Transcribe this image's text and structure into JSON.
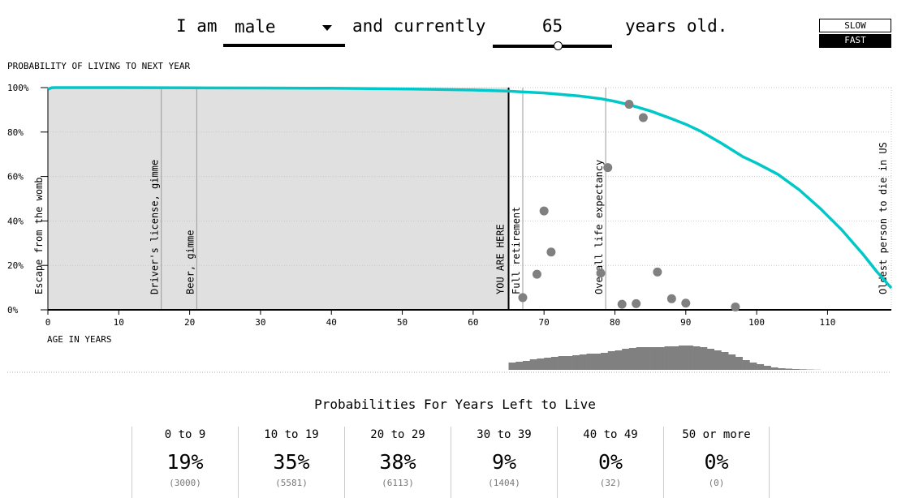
{
  "header": {
    "prefix": "I am",
    "sex_select": {
      "value": "male"
    },
    "middle": "and currently",
    "age_slider": {
      "value": "65"
    },
    "suffix": "years old."
  },
  "speed_toggle": {
    "slow_label": "SLOW",
    "fast_label": "FAST",
    "selected": "FAST"
  },
  "chart_data": [
    {
      "type": "line",
      "title": "PROBABILITY OF LIVING TO NEXT YEAR",
      "xlabel": "AGE IN YEARS",
      "ylabel": "",
      "xlim": [
        0,
        119
      ],
      "ylim": [
        0,
        100
      ],
      "x_ticks": [
        0,
        10,
        20,
        30,
        40,
        50,
        60,
        70,
        80,
        90,
        100,
        110
      ],
      "x_tick_labels": [
        "0",
        "10",
        "20",
        "30",
        "40",
        "50",
        "60",
        "70",
        "80",
        "90",
        "100",
        "110"
      ],
      "y_ticks": [
        0,
        20,
        40,
        60,
        80,
        100
      ],
      "y_tick_labels": [
        "0%",
        "20%",
        "40%",
        "60%",
        "80%",
        "100%"
      ],
      "grid": true,
      "series": [
        {
          "color": "#00c8c8",
          "x": [
            0,
            0.5,
            1,
            5,
            10,
            20,
            30,
            40,
            50,
            55,
            60,
            65,
            70,
            75,
            78,
            80,
            82,
            85,
            88,
            90,
            92,
            95,
            98,
            100,
            103,
            106,
            109,
            112,
            115,
            117,
            119
          ],
          "y": [
            99.3,
            99.9,
            100,
            100,
            100,
            99.9,
            99.8,
            99.7,
            99.4,
            99.2,
            98.9,
            98.4,
            97.6,
            96.2,
            95.0,
            93.8,
            92.3,
            89.5,
            86.0,
            83.5,
            80.5,
            75.0,
            69.0,
            66.0,
            61.0,
            54.0,
            45.5,
            36.0,
            25.0,
            17.0,
            9.8
          ]
        }
      ],
      "scatter": {
        "color": "#808080",
        "points": [
          {
            "x": 82,
            "y": 92.5
          },
          {
            "x": 84,
            "y": 86.5
          },
          {
            "x": 79,
            "y": 64
          },
          {
            "x": 70,
            "y": 44.5
          },
          {
            "x": 71,
            "y": 26
          },
          {
            "x": 69,
            "y": 16
          },
          {
            "x": 86,
            "y": 17
          },
          {
            "x": 78,
            "y": 16.5
          },
          {
            "x": 67,
            "y": 5.5
          },
          {
            "x": 81,
            "y": 2.5
          },
          {
            "x": 83,
            "y": 2.8
          },
          {
            "x": 88,
            "y": 5
          },
          {
            "x": 90,
            "y": 3
          },
          {
            "x": 97,
            "y": 1.3
          }
        ]
      },
      "shaded_region": {
        "from": 0,
        "to": 65,
        "color": "#e0e0e0"
      },
      "current_marker": {
        "x": 65,
        "label": "YOU ARE HERE"
      },
      "annotations": [
        {
          "x": 0,
          "label": "Escape from the womb"
        },
        {
          "x": 16,
          "label": "Driver's license, gimme"
        },
        {
          "x": 21,
          "label": "Beer, gimme"
        },
        {
          "x": 67,
          "label": "Full retirement"
        },
        {
          "x": 78.7,
          "label": "Overall life expectancy"
        },
        {
          "x": 119,
          "label": "Oldest person to die in US"
        }
      ]
    },
    {
      "type": "bar",
      "title": "",
      "xlabel": "",
      "ylabel": "",
      "color": "#808080",
      "x_start": 65,
      "values": [
        9,
        10,
        11,
        13,
        14,
        15,
        16,
        17,
        17,
        18,
        19,
        20,
        20,
        21,
        23,
        24,
        26,
        27,
        28,
        28,
        28,
        28,
        29,
        29,
        30,
        30,
        29,
        28,
        26,
        24,
        22,
        19,
        16,
        12,
        9,
        7,
        5,
        3,
        2,
        1.5,
        1,
        0.7,
        0.4,
        0.2
      ]
    }
  ],
  "table": {
    "title": "Probabilities For Years Left to Live",
    "columns": [
      {
        "range": "0 to 9",
        "percent": "19%",
        "count": "(3000)"
      },
      {
        "range": "10 to 19",
        "percent": "35%",
        "count": "(5581)"
      },
      {
        "range": "20 to 29",
        "percent": "38%",
        "count": "(6113)"
      },
      {
        "range": "30 to 39",
        "percent": "9%",
        "count": "(1404)"
      },
      {
        "range": "40 to 49",
        "percent": "0%",
        "count": "(32)"
      },
      {
        "range": "50 or more",
        "percent": "0%",
        "count": "(0)"
      }
    ]
  }
}
